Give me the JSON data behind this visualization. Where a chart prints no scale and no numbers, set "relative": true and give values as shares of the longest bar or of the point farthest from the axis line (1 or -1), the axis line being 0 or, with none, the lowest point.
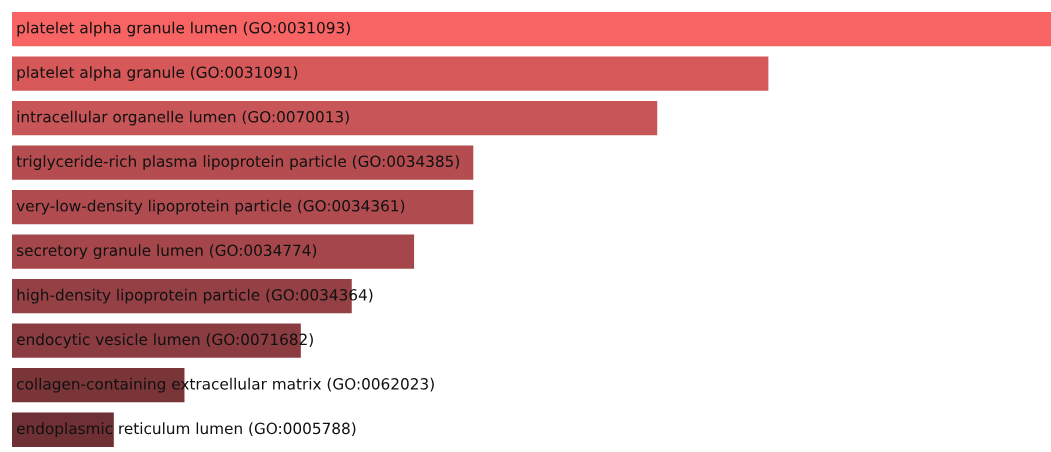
{
  "chart_data": {
    "type": "bar",
    "orientation": "horizontal",
    "relative": true,
    "categories": [
      "platelet alpha granule lumen (GO:0031093)",
      "platelet alpha granule (GO:0031091)",
      "intracellular organelle lumen (GO:0070013)",
      "triglyceride-rich plasma lipoprotein particle (GO:0034385)",
      "very-low-density lipoprotein particle (GO:0034361)",
      "secretory granule lumen (GO:0034774)",
      "high-density lipoprotein particle (GO:0034364)",
      "endocytic vesicle lumen (GO:0071682)",
      "collagen-containing extracellular matrix (GO:0062023)",
      "endoplasmic reticulum lumen (GO:0005788)"
    ],
    "values": [
      1,
      0.728,
      0.621,
      0.444,
      0.444,
      0.387,
      0.327,
      0.278,
      0.166,
      0.098
    ],
    "colors": [
      "#f86464",
      "#d75858",
      "#c85558",
      "#b44c50",
      "#b04b50",
      "#a4464a",
      "#944045",
      "#8a3c40",
      "#7a3538",
      "#6e3034"
    ]
  }
}
